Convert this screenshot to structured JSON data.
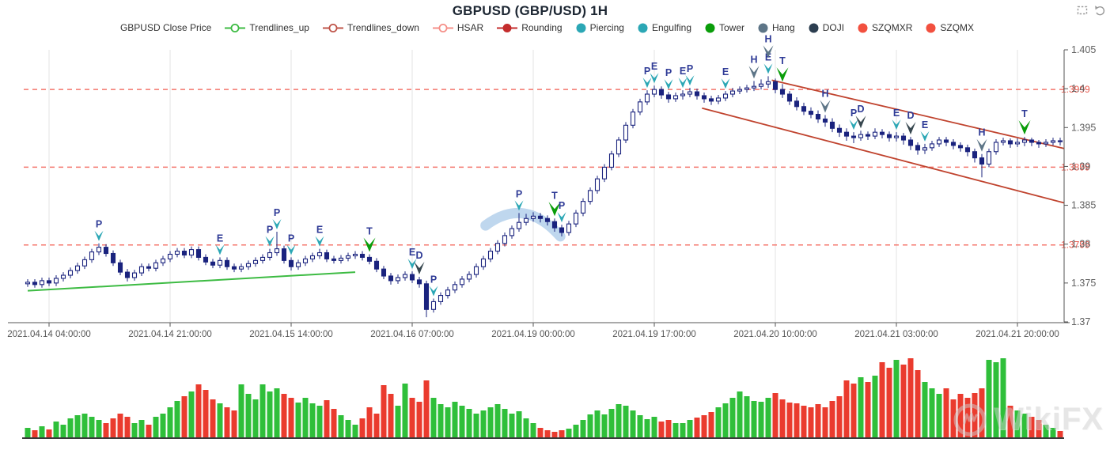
{
  "title": "GBPUSD (GBP/USD) 1H",
  "toolbox": {
    "icons": [
      "zoom-select-icon",
      "restore-icon"
    ],
    "color": "#999999"
  },
  "legend": {
    "items": [
      {
        "label": "GBPUSD Close Price",
        "symbol": "none",
        "color": "#333333",
        "fill": "#ffffff"
      },
      {
        "label": "Trendlines_up",
        "symbol": "line-circle",
        "color": "#3dbb43",
        "fill": "#ffffff"
      },
      {
        "label": "Trendlines_down",
        "symbol": "line-circle",
        "color": "#bf5449",
        "fill": "#ffffff"
      },
      {
        "label": "HSAR",
        "symbol": "line-circle",
        "color": "#f58f88",
        "fill": "#ffffff"
      },
      {
        "label": "Rounding",
        "symbol": "line-circle",
        "color": "#c42d2d",
        "fill": "#c42d2d"
      },
      {
        "label": "Piercing",
        "symbol": "circle",
        "color": "#2ba7b5",
        "fill": "#2ba7b5"
      },
      {
        "label": "Engulfing",
        "symbol": "circle",
        "color": "#2ba7b5",
        "fill": "#2ba7b5"
      },
      {
        "label": "Tower",
        "symbol": "circle",
        "color": "#0a9d0a",
        "fill": "#0a9d0a"
      },
      {
        "label": "Hang",
        "symbol": "circle",
        "color": "#5d7587",
        "fill": "#5d7587"
      },
      {
        "label": "DOJI",
        "symbol": "circle",
        "color": "#2c3e50",
        "fill": "#2c3e50"
      },
      {
        "label": "SZQMXR",
        "symbol": "circle",
        "color": "#f2503f",
        "fill": "#f2503f"
      },
      {
        "label": "SZQMX",
        "symbol": "circle",
        "color": "#f2503f",
        "fill": "#f2503f"
      }
    ]
  },
  "watermark": {
    "text": "WikiFX"
  },
  "chart_data": {
    "type": "candlestick",
    "title": "GBPUSD (GBP/USD) 1H",
    "timeframe": "1H",
    "ylim": [
      1.37,
      1.405
    ],
    "grid": "vertical-only",
    "y_ticks": {
      "labels": [
        "1.405",
        "1.4",
        "1.395",
        "1.39",
        "1.385",
        "1.38",
        "1.375",
        "1.37"
      ],
      "prices": [
        1.405,
        1.4,
        1.395,
        1.39,
        1.385,
        1.38,
        1.375,
        1.37
      ]
    },
    "x_ticks": {
      "indices": [
        3,
        20,
        37,
        54,
        71,
        88,
        105,
        122,
        139
      ],
      "labels": [
        "2021.04.14 04:00:00",
        "2021.04.14 21:00:00",
        "2021.04.15 14:00:00",
        "2021.04.16 07:00:00",
        "2021.04.19 00:00:00",
        "2021.04.19 17:00:00",
        "2021.04.20 10:00:00",
        "2021.04.21 03:00:00",
        "2021.04.21 20:00:00"
      ]
    },
    "hsar": {
      "levels": [
        1.3999,
        1.3899,
        1.3799
      ],
      "labels": [
        "1.3999",
        "1.3899",
        "1.3799"
      ],
      "color": "#f4766c",
      "label_color": "#e8564a"
    },
    "trendlines": [
      {
        "name": "trendline-up",
        "i1": 0,
        "p1": 1.374,
        "i2": 46,
        "p2": 1.3764,
        "color": "#3dbb43",
        "width": 2
      },
      {
        "name": "trendline-down-upper",
        "i1": 104.5,
        "p1": 1.4011,
        "i2": 145.6,
        "p2": 1.3923,
        "color": "#c0432e",
        "width": 1.8
      },
      {
        "name": "trendline-down-lower",
        "i1": 94.7,
        "p1": 1.3975,
        "i2": 145.6,
        "p2": 1.3853,
        "color": "#c0432e",
        "width": 1.8
      }
    ],
    "rounding_arc": {
      "from_i": 64.3,
      "ctrl_i": 69.8,
      "to_i": 74.8,
      "from_p": 1.3824,
      "ctrl_p": 1.3862,
      "to_p": 1.381,
      "color": "#8ab7e0",
      "width": 13,
      "opacity": 0.55
    },
    "candle_colors": {
      "body": "#1a237e",
      "up_fill": "#ffffff",
      "down_fill": "#1a237e"
    },
    "marker_styles": {
      "piercing": {
        "color": "#2ba7b5",
        "w": 11,
        "h": 13
      },
      "engulfing": {
        "color": "#2ba7b5",
        "w": 11,
        "h": 13
      },
      "tower": {
        "color": "#0a9d0a",
        "w": 15,
        "h": 18
      },
      "hang": {
        "color": "#5d7587",
        "w": 13,
        "h": 16
      },
      "doji": {
        "color": "#37474f",
        "w": 13,
        "h": 16
      }
    },
    "marker_letter_color": "#2e3a96",
    "markers": [
      [
        10,
        "P",
        "piercing"
      ],
      [
        27,
        "E",
        "engulfing"
      ],
      [
        34,
        "P",
        "piercing"
      ],
      [
        35,
        "P",
        "piercing"
      ],
      [
        37,
        "P",
        "piercing"
      ],
      [
        41,
        "E",
        "engulfing"
      ],
      [
        48,
        "T",
        "tower"
      ],
      [
        54,
        "E",
        "engulfing"
      ],
      [
        55,
        "D",
        "doji"
      ],
      [
        57,
        "P",
        "piercing"
      ],
      [
        69,
        "P",
        "piercing"
      ],
      [
        74,
        "T",
        "tower"
      ],
      [
        75,
        "P",
        "piercing"
      ],
      [
        87,
        "P",
        "piercing"
      ],
      [
        88,
        "E",
        "engulfing"
      ],
      [
        90,
        "P",
        "piercing"
      ],
      [
        92,
        "E",
        "engulfing"
      ],
      [
        93,
        "P",
        "piercing"
      ],
      [
        98,
        "E",
        "engulfing"
      ],
      [
        102,
        "H",
        "hang"
      ],
      [
        104,
        "E",
        "engulfing"
      ],
      [
        104,
        "H",
        "hang"
      ],
      [
        106,
        "T",
        "tower"
      ],
      [
        112,
        "H",
        "hang"
      ],
      [
        116,
        "P",
        "piercing"
      ],
      [
        117,
        "D",
        "doji"
      ],
      [
        122,
        "E",
        "engulfing"
      ],
      [
        124,
        "D",
        "doji"
      ],
      [
        126,
        "E",
        "engulfing"
      ],
      [
        134,
        "H",
        "hang"
      ],
      [
        140,
        "T",
        "tower"
      ]
    ],
    "candles_format": "[open, close, low, high]",
    "candles": [
      [
        1.3749,
        1.3751,
        1.3745,
        1.3755
      ],
      [
        1.3751,
        1.3748,
        1.3744,
        1.3755
      ],
      [
        1.3748,
        1.3753,
        1.3744,
        1.3757
      ],
      [
        1.3753,
        1.375,
        1.3746,
        1.3757
      ],
      [
        1.375,
        1.3756,
        1.3746,
        1.376
      ],
      [
        1.3756,
        1.376,
        1.3752,
        1.3764
      ],
      [
        1.376,
        1.3766,
        1.3756,
        1.377
      ],
      [
        1.3766,
        1.3772,
        1.3762,
        1.3776
      ],
      [
        1.3772,
        1.378,
        1.3768,
        1.3784
      ],
      [
        1.378,
        1.379,
        1.3776,
        1.3794
      ],
      [
        1.379,
        1.3796,
        1.3786,
        1.3801
      ],
      [
        1.3796,
        1.3788,
        1.3784,
        1.38
      ],
      [
        1.3788,
        1.3776,
        1.3772,
        1.3792
      ],
      [
        1.3776,
        1.3764,
        1.376,
        1.378
      ],
      [
        1.3764,
        1.3757,
        1.3752,
        1.3768
      ],
      [
        1.3757,
        1.3763,
        1.3753,
        1.3767
      ],
      [
        1.3763,
        1.3771,
        1.3759,
        1.3775
      ],
      [
        1.3771,
        1.3769,
        1.3765,
        1.3775
      ],
      [
        1.3769,
        1.3776,
        1.3765,
        1.378
      ],
      [
        1.3776,
        1.3781,
        1.3772,
        1.3785
      ],
      [
        1.3781,
        1.3787,
        1.3777,
        1.3791
      ],
      [
        1.3787,
        1.3791,
        1.3783,
        1.3795
      ],
      [
        1.3791,
        1.3786,
        1.3782,
        1.3795
      ],
      [
        1.3786,
        1.3793,
        1.3782,
        1.3797
      ],
      [
        1.3793,
        1.3783,
        1.3779,
        1.3797
      ],
      [
        1.3783,
        1.3777,
        1.3773,
        1.3787
      ],
      [
        1.3777,
        1.3773,
        1.3769,
        1.3781
      ],
      [
        1.3773,
        1.3779,
        1.3769,
        1.3783
      ],
      [
        1.3779,
        1.3771,
        1.3767,
        1.3783
      ],
      [
        1.3771,
        1.3768,
        1.3764,
        1.3775
      ],
      [
        1.3768,
        1.3771,
        1.3764,
        1.3775
      ],
      [
        1.3771,
        1.3775,
        1.3767,
        1.3779
      ],
      [
        1.3775,
        1.3779,
        1.3771,
        1.3783
      ],
      [
        1.3779,
        1.3783,
        1.3775,
        1.3787
      ],
      [
        1.3783,
        1.3789,
        1.3779,
        1.3794
      ],
      [
        1.3789,
        1.3794,
        1.3785,
        1.3816
      ],
      [
        1.3794,
        1.3779,
        1.3775,
        1.3798
      ],
      [
        1.3779,
        1.3771,
        1.3766,
        1.3783
      ],
      [
        1.3771,
        1.3776,
        1.3767,
        1.378
      ],
      [
        1.3776,
        1.3781,
        1.3772,
        1.3785
      ],
      [
        1.3781,
        1.3785,
        1.3777,
        1.3789
      ],
      [
        1.3785,
        1.3789,
        1.3781,
        1.3794
      ],
      [
        1.3789,
        1.3781,
        1.3777,
        1.3793
      ],
      [
        1.3781,
        1.3779,
        1.3775,
        1.3785
      ],
      [
        1.3779,
        1.3782,
        1.3775,
        1.3786
      ],
      [
        1.3782,
        1.3785,
        1.3778,
        1.3789
      ],
      [
        1.3785,
        1.3787,
        1.3781,
        1.3791
      ],
      [
        1.3787,
        1.3783,
        1.3779,
        1.3791
      ],
      [
        1.3783,
        1.3778,
        1.3774,
        1.3787
      ],
      [
        1.3778,
        1.3768,
        1.3764,
        1.3782
      ],
      [
        1.3768,
        1.3759,
        1.3755,
        1.3772
      ],
      [
        1.3759,
        1.3753,
        1.3748,
        1.3763
      ],
      [
        1.3753,
        1.3757,
        1.3749,
        1.3761
      ],
      [
        1.3757,
        1.3761,
        1.3753,
        1.3765
      ],
      [
        1.3761,
        1.3754,
        1.375,
        1.3765
      ],
      [
        1.3754,
        1.3749,
        1.3744,
        1.3758
      ],
      [
        1.3749,
        1.3716,
        1.3706,
        1.3753
      ],
      [
        1.3716,
        1.3726,
        1.3712,
        1.373
      ],
      [
        1.3726,
        1.3734,
        1.3722,
        1.3738
      ],
      [
        1.3734,
        1.3741,
        1.373,
        1.3745
      ],
      [
        1.3741,
        1.3748,
        1.3737,
        1.3752
      ],
      [
        1.3748,
        1.3755,
        1.3744,
        1.3759
      ],
      [
        1.3755,
        1.3761,
        1.3751,
        1.3765
      ],
      [
        1.3761,
        1.3771,
        1.3757,
        1.3775
      ],
      [
        1.3771,
        1.3781,
        1.3767,
        1.3785
      ],
      [
        1.3781,
        1.3791,
        1.3777,
        1.3795
      ],
      [
        1.3791,
        1.3801,
        1.3787,
        1.3805
      ],
      [
        1.3801,
        1.3811,
        1.3797,
        1.3815
      ],
      [
        1.3811,
        1.382,
        1.3807,
        1.3824
      ],
      [
        1.382,
        1.3828,
        1.3816,
        1.384
      ],
      [
        1.3828,
        1.3833,
        1.3824,
        1.3839
      ],
      [
        1.3833,
        1.3836,
        1.3829,
        1.3841
      ],
      [
        1.3836,
        1.3833,
        1.3828,
        1.384
      ],
      [
        1.3833,
        1.3829,
        1.3824,
        1.3837
      ],
      [
        1.3829,
        1.3821,
        1.3816,
        1.3833
      ],
      [
        1.3821,
        1.3815,
        1.381,
        1.3825
      ],
      [
        1.3815,
        1.3826,
        1.3811,
        1.383
      ],
      [
        1.3826,
        1.384,
        1.3822,
        1.3844
      ],
      [
        1.384,
        1.3855,
        1.3836,
        1.3859
      ],
      [
        1.3855,
        1.3869,
        1.3851,
        1.3873
      ],
      [
        1.3869,
        1.3884,
        1.3865,
        1.3888
      ],
      [
        1.3884,
        1.3899,
        1.388,
        1.3903
      ],
      [
        1.3899,
        1.3916,
        1.3895,
        1.392
      ],
      [
        1.3916,
        1.3934,
        1.3912,
        1.3938
      ],
      [
        1.3934,
        1.3953,
        1.393,
        1.3957
      ],
      [
        1.3953,
        1.397,
        1.3949,
        1.3974
      ],
      [
        1.397,
        1.3983,
        1.3966,
        1.3987
      ],
      [
        1.3983,
        1.3993,
        1.3979,
        1.3998
      ],
      [
        1.3993,
        1.3999,
        1.3989,
        1.4004
      ],
      [
        1.3999,
        1.3992,
        1.3987,
        1.4003
      ],
      [
        1.3992,
        1.3987,
        1.3982,
        1.3996
      ],
      [
        1.3987,
        1.3991,
        1.3983,
        1.3995
      ],
      [
        1.3991,
        1.3993,
        1.3986,
        1.3998
      ],
      [
        1.3993,
        1.3996,
        1.3989,
        1.4001
      ],
      [
        1.3996,
        1.3991,
        1.3986,
        1.4
      ],
      [
        1.3991,
        1.3987,
        1.3982,
        1.3995
      ],
      [
        1.3987,
        1.3984,
        1.3979,
        1.3991
      ],
      [
        1.3984,
        1.3988,
        1.398,
        1.3992
      ],
      [
        1.3988,
        1.3993,
        1.3984,
        1.3997
      ],
      [
        1.3993,
        1.3997,
        1.3989,
        1.4001
      ],
      [
        1.3997,
        1.3999,
        1.3993,
        1.4003
      ],
      [
        1.3999,
        1.4001,
        1.3995,
        1.4005
      ],
      [
        1.4001,
        1.4003,
        1.3997,
        1.401
      ],
      [
        1.4003,
        1.4006,
        1.3999,
        1.4012
      ],
      [
        1.4006,
        1.4009,
        1.4001,
        1.4016
      ],
      [
        1.4009,
        1.3999,
        1.3994,
        1.4013
      ],
      [
        1.3999,
        1.3993,
        1.3988,
        1.4006
      ],
      [
        1.3993,
        1.3984,
        1.3979,
        1.3997
      ],
      [
        1.3984,
        1.3977,
        1.3972,
        1.3989
      ],
      [
        1.3977,
        1.3971,
        1.3966,
        1.3982
      ],
      [
        1.3971,
        1.3967,
        1.3962,
        1.3976
      ],
      [
        1.3967,
        1.3961,
        1.3956,
        1.3972
      ],
      [
        1.3961,
        1.3957,
        1.3951,
        1.3966
      ],
      [
        1.3957,
        1.3949,
        1.3944,
        1.3962
      ],
      [
        1.3949,
        1.3944,
        1.3938,
        1.3954
      ],
      [
        1.3944,
        1.3939,
        1.3933,
        1.3949
      ],
      [
        1.3939,
        1.3937,
        1.393,
        1.3944
      ],
      [
        1.3937,
        1.3941,
        1.3933,
        1.3946
      ],
      [
        1.3941,
        1.3939,
        1.3934,
        1.3945
      ],
      [
        1.3939,
        1.3944,
        1.3935,
        1.3949
      ],
      [
        1.3944,
        1.3941,
        1.3936,
        1.3948
      ],
      [
        1.3941,
        1.3937,
        1.3932,
        1.3945
      ],
      [
        1.3937,
        1.3939,
        1.3932,
        1.3944
      ],
      [
        1.3939,
        1.3934,
        1.3928,
        1.3943
      ],
      [
        1.3934,
        1.3927,
        1.3921,
        1.3938
      ],
      [
        1.3927,
        1.3921,
        1.3915,
        1.3931
      ],
      [
        1.3921,
        1.3924,
        1.3916,
        1.3929
      ],
      [
        1.3924,
        1.3929,
        1.392,
        1.3933
      ],
      [
        1.3929,
        1.3934,
        1.3925,
        1.3938
      ],
      [
        1.3934,
        1.3931,
        1.3926,
        1.3938
      ],
      [
        1.3931,
        1.3927,
        1.3922,
        1.3935
      ],
      [
        1.3927,
        1.3924,
        1.3919,
        1.3931
      ],
      [
        1.3924,
        1.3919,
        1.3913,
        1.3928
      ],
      [
        1.3919,
        1.3911,
        1.3905,
        1.3923
      ],
      [
        1.3911,
        1.3903,
        1.3886,
        1.3916
      ],
      [
        1.3903,
        1.3919,
        1.3899,
        1.3923
      ],
      [
        1.3919,
        1.3931,
        1.3915,
        1.3935
      ],
      [
        1.3931,
        1.3933,
        1.3927,
        1.3937
      ],
      [
        1.3933,
        1.3929,
        1.3924,
        1.3936
      ],
      [
        1.3929,
        1.3931,
        1.3925,
        1.3936
      ],
      [
        1.3931,
        1.3934,
        1.3926,
        1.3938
      ],
      [
        1.3934,
        1.3931,
        1.3926,
        1.3937
      ],
      [
        1.3931,
        1.3929,
        1.3924,
        1.3934
      ],
      [
        1.3929,
        1.3931,
        1.3925,
        1.3935
      ],
      [
        1.3931,
        1.3933,
        1.3927,
        1.3937
      ],
      [
        1.3933,
        1.3932,
        1.3927,
        1.3937
      ]
    ],
    "volume_colors": {
      "up": "#2fbf3a",
      "down": "#ea3b2e"
    },
    "volumes": [
      12,
      9,
      14,
      10,
      20,
      16,
      24,
      28,
      30,
      26,
      22,
      18,
      24,
      30,
      26,
      18,
      22,
      16,
      26,
      30,
      38,
      46,
      52,
      58,
      67,
      60,
      48,
      43,
      38,
      34,
      67,
      55,
      48,
      67,
      58,
      62,
      55,
      50,
      44,
      50,
      43,
      40,
      47,
      36,
      28,
      22,
      16,
      24,
      38,
      30,
      66,
      55,
      40,
      68,
      50,
      45,
      72,
      50,
      42,
      38,
      45,
      40,
      36,
      30,
      34,
      38,
      42,
      36,
      30,
      33,
      24,
      18,
      12,
      9,
      7,
      9,
      11,
      16,
      22,
      29,
      34,
      29,
      36,
      42,
      40,
      34,
      28,
      23,
      26,
      20,
      22,
      18,
      18,
      22,
      25,
      28,
      32,
      38,
      43,
      50,
      58,
      52,
      46,
      45,
      50,
      56,
      48,
      44,
      43,
      40,
      38,
      42,
      38,
      46,
      52,
      72,
      68,
      76,
      70,
      78,
      95,
      88,
      98,
      92,
      100,
      85,
      70,
      62,
      55,
      62,
      48,
      55,
      50,
      56,
      62,
      98,
      95,
      100,
      40,
      34,
      30,
      26,
      22,
      16,
      12,
      8
    ]
  }
}
